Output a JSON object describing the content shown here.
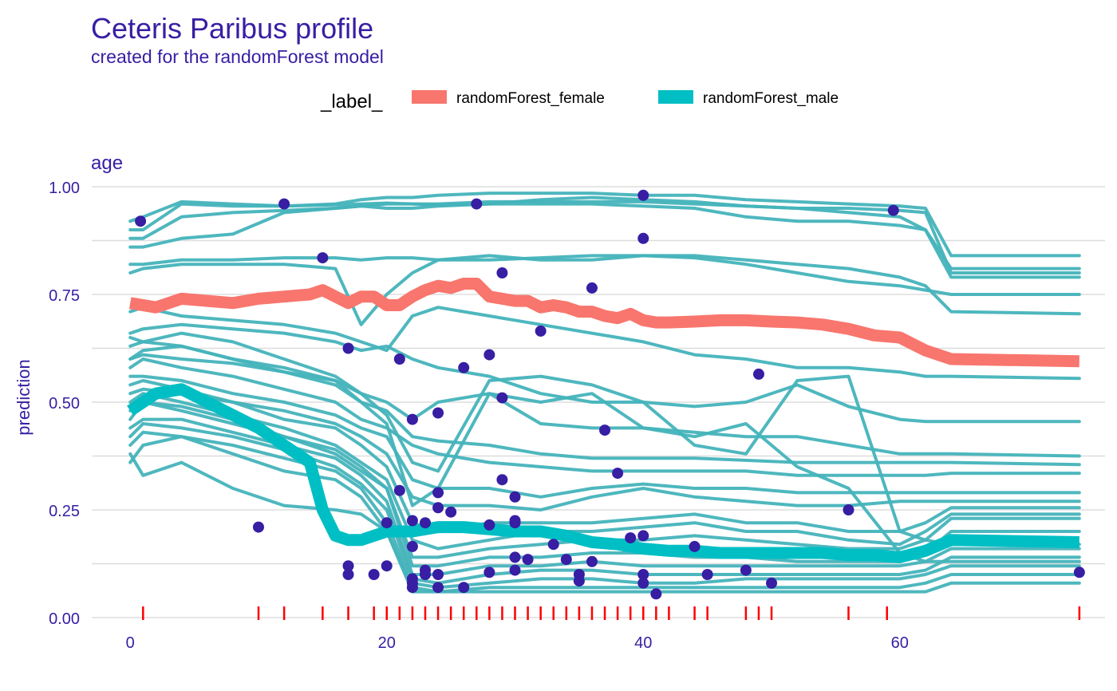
{
  "chart_data": {
    "type": "line",
    "title": "Ceteris Paribus profile",
    "subtitle": "created for the randomForest model",
    "panel_label": "age",
    "xlabel": "",
    "ylabel": "prediction",
    "xlim": [
      -3,
      76
    ],
    "ylim": [
      0,
      1
    ],
    "x_ticks": [
      0,
      20,
      40,
      60
    ],
    "y_ticks": [
      "0.00",
      "0.25",
      "0.50",
      "0.75",
      "1.00"
    ],
    "y_tick_values": [
      0,
      0.25,
      0.5,
      0.75,
      1.0
    ],
    "grid": true,
    "legend": {
      "title": "_label_",
      "position": "top",
      "entries": [
        {
          "name": "randomForest_female",
          "color": "#F8766D"
        },
        {
          "name": "randomForest_male",
          "color": "#00BFC4"
        }
      ]
    },
    "colors": {
      "text": "#371ea3",
      "female": "#F8766D",
      "male": "#00BFC4",
      "male_profiles": "#45B3BA",
      "points": "#371ea3",
      "rug": "#ff0000",
      "grid": "#dddddd"
    },
    "female_profile": {
      "x": [
        0,
        2,
        4,
        6,
        8,
        10,
        12,
        14,
        15,
        16,
        17,
        18,
        19,
        20,
        21,
        22,
        23,
        24,
        25,
        26,
        27,
        28,
        29,
        30,
        31,
        32,
        33,
        34,
        35,
        36,
        37,
        38,
        39,
        40,
        41,
        42,
        44,
        46,
        48,
        50,
        52,
        54,
        56,
        58,
        60,
        62,
        64,
        74
      ],
      "y": [
        0.73,
        0.72,
        0.74,
        0.735,
        0.73,
        0.74,
        0.745,
        0.75,
        0.76,
        0.745,
        0.73,
        0.745,
        0.745,
        0.725,
        0.725,
        0.745,
        0.76,
        0.77,
        0.765,
        0.775,
        0.775,
        0.745,
        0.74,
        0.735,
        0.735,
        0.72,
        0.725,
        0.72,
        0.71,
        0.71,
        0.7,
        0.695,
        0.705,
        0.69,
        0.685,
        0.685,
        0.687,
        0.69,
        0.69,
        0.687,
        0.685,
        0.68,
        0.67,
        0.655,
        0.65,
        0.62,
        0.6,
        0.595
      ]
    },
    "male_mean_profile": {
      "x": [
        0,
        2,
        4,
        6,
        8,
        10,
        12,
        14,
        15,
        16,
        17,
        18,
        20,
        22,
        24,
        26,
        28,
        30,
        32,
        34,
        36,
        38,
        40,
        42,
        44,
        46,
        48,
        50,
        52,
        54,
        56,
        58,
        60,
        62,
        64,
        74
      ],
      "y": [
        0.48,
        0.52,
        0.53,
        0.5,
        0.47,
        0.44,
        0.4,
        0.36,
        0.25,
        0.19,
        0.18,
        0.18,
        0.2,
        0.2,
        0.21,
        0.21,
        0.205,
        0.2,
        0.2,
        0.19,
        0.175,
        0.17,
        0.16,
        0.155,
        0.155,
        0.15,
        0.15,
        0.15,
        0.15,
        0.15,
        0.145,
        0.145,
        0.14,
        0.155,
        0.18,
        0.175
      ]
    },
    "male_profiles": [
      [
        0.92,
        0.93,
        0.965,
        0.96,
        0.955,
        0.96,
        0.97,
        0.975,
        0.975,
        0.98,
        0.985,
        0.985,
        0.985,
        0.98,
        0.98,
        0.97,
        0.965,
        0.96,
        0.955,
        0.95,
        0.84,
        0.84
      ],
      [
        0.9,
        0.9,
        0.96,
        0.955,
        0.955,
        0.958,
        0.96,
        0.962,
        0.96,
        0.96,
        0.965,
        0.965,
        0.965,
        0.965,
        0.96,
        0.955,
        0.95,
        0.95,
        0.945,
        0.94,
        0.8,
        0.8
      ],
      [
        0.88,
        0.88,
        0.93,
        0.94,
        0.945,
        0.95,
        0.955,
        0.96,
        0.96,
        0.958,
        0.96,
        0.96,
        0.96,
        0.955,
        0.95,
        0.93,
        0.92,
        0.92,
        0.91,
        0.9,
        0.81,
        0.81
      ],
      [
        0.86,
        0.86,
        0.88,
        0.89,
        0.94,
        0.95,
        0.955,
        0.95,
        0.95,
        0.955,
        0.96,
        0.97,
        0.975,
        0.97,
        0.965,
        0.955,
        0.95,
        0.94,
        0.93,
        0.9,
        0.79,
        0.79
      ],
      [
        0.82,
        0.82,
        0.83,
        0.83,
        0.835,
        0.835,
        0.83,
        0.835,
        0.835,
        0.83,
        0.83,
        0.835,
        0.84,
        0.84,
        0.835,
        0.82,
        0.8,
        0.78,
        0.77,
        0.76,
        0.75,
        0.75
      ],
      [
        0.8,
        0.81,
        0.82,
        0.82,
        0.82,
        0.81,
        0.68,
        0.75,
        0.8,
        0.83,
        0.84,
        0.83,
        0.83,
        0.84,
        0.84,
        0.83,
        0.82,
        0.81,
        0.79,
        0.77,
        0.71,
        0.705
      ],
      [
        0.71,
        0.72,
        0.7,
        0.69,
        0.68,
        0.66,
        0.64,
        0.62,
        0.7,
        0.72,
        0.7,
        0.68,
        0.66,
        0.64,
        0.61,
        0.6,
        0.58,
        0.58,
        0.57,
        0.56,
        0.56,
        0.555
      ],
      [
        0.66,
        0.67,
        0.68,
        0.67,
        0.66,
        0.64,
        0.62,
        0.63,
        0.6,
        0.58,
        0.56,
        0.52,
        0.5,
        0.5,
        0.49,
        0.5,
        0.54,
        0.49,
        0.46,
        0.455,
        0.455,
        0.455
      ],
      [
        0.65,
        0.64,
        0.63,
        0.6,
        0.58,
        0.55,
        0.52,
        0.5,
        0.46,
        0.5,
        0.52,
        0.45,
        0.44,
        0.44,
        0.43,
        0.42,
        0.42,
        0.4,
        0.38,
        0.38,
        0.38,
        0.375
      ],
      [
        0.6,
        0.61,
        0.6,
        0.59,
        0.57,
        0.55,
        0.5,
        0.48,
        0.42,
        0.41,
        0.4,
        0.38,
        0.37,
        0.37,
        0.37,
        0.365,
        0.36,
        0.36,
        0.36,
        0.36,
        0.36,
        0.355
      ],
      [
        0.58,
        0.6,
        0.58,
        0.56,
        0.53,
        0.5,
        0.46,
        0.44,
        0.4,
        0.38,
        0.36,
        0.35,
        0.34,
        0.34,
        0.34,
        0.34,
        0.33,
        0.33,
        0.33,
        0.33,
        0.335,
        0.335
      ],
      [
        0.56,
        0.56,
        0.55,
        0.52,
        0.5,
        0.47,
        0.44,
        0.42,
        0.32,
        0.3,
        0.3,
        0.28,
        0.3,
        0.31,
        0.3,
        0.3,
        0.29,
        0.29,
        0.29,
        0.29,
        0.29,
        0.29
      ],
      [
        0.54,
        0.55,
        0.53,
        0.5,
        0.48,
        0.45,
        0.42,
        0.38,
        0.28,
        0.26,
        0.26,
        0.25,
        0.28,
        0.3,
        0.28,
        0.27,
        0.26,
        0.26,
        0.27,
        0.27,
        0.27,
        0.27
      ],
      [
        0.52,
        0.53,
        0.52,
        0.5,
        0.46,
        0.44,
        0.4,
        0.35,
        0.22,
        0.2,
        0.22,
        0.22,
        0.22,
        0.23,
        0.24,
        0.22,
        0.22,
        0.2,
        0.2,
        0.22,
        0.255,
        0.255
      ],
      [
        0.5,
        0.52,
        0.5,
        0.47,
        0.44,
        0.4,
        0.36,
        0.32,
        0.18,
        0.16,
        0.18,
        0.2,
        0.2,
        0.21,
        0.22,
        0.2,
        0.2,
        0.18,
        0.17,
        0.2,
        0.24,
        0.24
      ],
      [
        0.48,
        0.5,
        0.49,
        0.46,
        0.42,
        0.38,
        0.34,
        0.3,
        0.14,
        0.14,
        0.16,
        0.17,
        0.18,
        0.18,
        0.19,
        0.18,
        0.17,
        0.16,
        0.16,
        0.18,
        0.23,
        0.23
      ],
      [
        0.46,
        0.5,
        0.48,
        0.45,
        0.42,
        0.39,
        0.35,
        0.3,
        0.12,
        0.12,
        0.14,
        0.14,
        0.15,
        0.15,
        0.14,
        0.14,
        0.13,
        0.13,
        0.13,
        0.15,
        0.2,
        0.2
      ],
      [
        0.44,
        0.46,
        0.46,
        0.43,
        0.4,
        0.37,
        0.33,
        0.27,
        0.1,
        0.1,
        0.12,
        0.12,
        0.13,
        0.12,
        0.12,
        0.12,
        0.12,
        0.12,
        0.12,
        0.13,
        0.16,
        0.16
      ],
      [
        0.42,
        0.45,
        0.44,
        0.42,
        0.39,
        0.35,
        0.31,
        0.25,
        0.09,
        0.08,
        0.1,
        0.11,
        0.11,
        0.1,
        0.1,
        0.1,
        0.1,
        0.1,
        0.1,
        0.11,
        0.14,
        0.14
      ],
      [
        0.4,
        0.43,
        0.42,
        0.4,
        0.37,
        0.34,
        0.3,
        0.22,
        0.08,
        0.07,
        0.08,
        0.09,
        0.09,
        0.08,
        0.08,
        0.09,
        0.09,
        0.09,
        0.09,
        0.1,
        0.12,
        0.12
      ],
      [
        0.38,
        0.33,
        0.36,
        0.3,
        0.26,
        0.25,
        0.24,
        0.2,
        0.07,
        0.06,
        0.07,
        0.07,
        0.07,
        0.07,
        0.07,
        0.07,
        0.07,
        0.07,
        0.07,
        0.08,
        0.1,
        0.1
      ],
      [
        0.36,
        0.4,
        0.42,
        0.38,
        0.34,
        0.32,
        0.28,
        0.2,
        0.06,
        0.06,
        0.06,
        0.06,
        0.06,
        0.06,
        0.06,
        0.06,
        0.06,
        0.06,
        0.06,
        0.06,
        0.08,
        0.08
      ],
      [
        0.63,
        0.64,
        0.66,
        0.64,
        0.6,
        0.56,
        0.52,
        0.47,
        0.36,
        0.34,
        0.55,
        0.56,
        0.54,
        0.5,
        0.4,
        0.38,
        0.55,
        0.56,
        0.2,
        0.18,
        0.17,
        0.17
      ],
      [
        0.6,
        0.62,
        0.63,
        0.6,
        0.57,
        0.54,
        0.5,
        0.45,
        0.26,
        0.3,
        0.52,
        0.5,
        0.52,
        0.44,
        0.42,
        0.45,
        0.35,
        0.3,
        0.15,
        0.13,
        0.13,
        0.13
      ]
    ],
    "male_profiles_x": [
      0,
      1,
      4,
      8,
      12,
      16,
      18,
      20,
      22,
      24,
      28,
      32,
      36,
      40,
      44,
      48,
      52,
      56,
      60,
      62,
      64,
      74
    ],
    "observations": {
      "x": [
        0.8,
        10,
        12,
        15,
        17,
        17,
        17,
        19,
        20,
        20,
        21,
        21,
        22,
        22,
        22,
        22,
        22,
        22,
        23,
        23,
        23,
        24,
        24,
        24,
        24,
        24,
        25,
        26,
        26,
        27,
        28,
        28,
        28,
        29,
        29,
        29,
        30,
        30,
        30,
        30,
        30,
        31,
        32,
        33,
        34,
        35,
        35,
        36,
        36,
        37,
        38,
        39,
        40,
        40,
        40,
        40,
        40,
        41,
        44,
        45,
        48,
        49,
        50,
        56,
        59.5,
        74
      ],
      "y": [
        0.92,
        0.21,
        0.96,
        0.835,
        0.625,
        0.12,
        0.1,
        0.1,
        0.12,
        0.22,
        0.6,
        0.295,
        0.46,
        0.225,
        0.165,
        0.09,
        0.08,
        0.07,
        0.1,
        0.11,
        0.22,
        0.475,
        0.29,
        0.255,
        0.1,
        0.07,
        0.245,
        0.58,
        0.07,
        0.96,
        0.61,
        0.215,
        0.105,
        0.8,
        0.51,
        0.32,
        0.28,
        0.22,
        0.225,
        0.14,
        0.11,
        0.135,
        0.665,
        0.17,
        0.135,
        0.1,
        0.085,
        0.765,
        0.13,
        0.435,
        0.335,
        0.185,
        0.98,
        0.88,
        0.19,
        0.1,
        0.08,
        0.055,
        0.165,
        0.1,
        0.11,
        0.565,
        0.08,
        0.25,
        0.945,
        0.105
      ]
    },
    "rug_x": [
      1,
      10,
      12,
      15,
      17,
      19,
      20,
      21,
      22,
      23,
      24,
      25,
      26,
      27,
      28,
      29,
      30,
      31,
      32,
      33,
      34,
      35,
      36,
      37,
      38,
      39,
      40,
      41,
      42,
      44,
      45,
      48,
      49,
      50,
      56,
      59,
      74
    ]
  }
}
